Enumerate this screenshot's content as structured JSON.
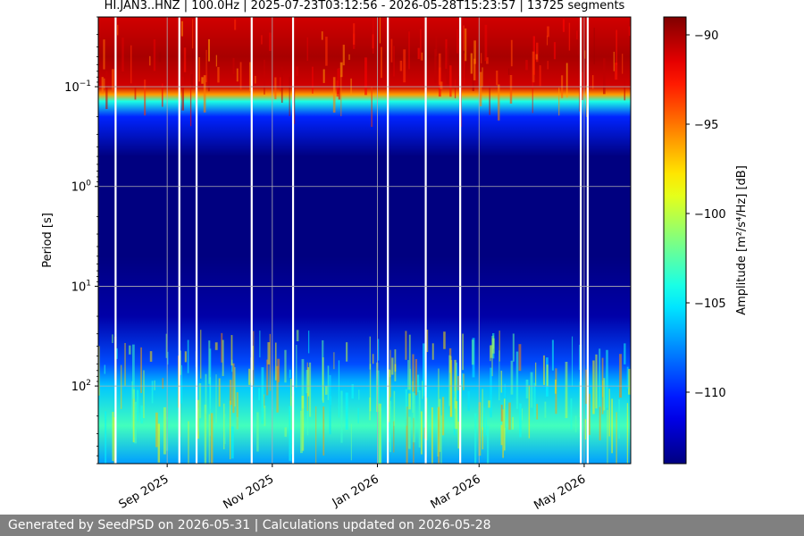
{
  "title": "HI.JAN3..HNZ | 100.0Hz | 2025-07-23T03:12:56 - 2026-05-28T15:23:57 | 13725 segments",
  "footer": "Generated by SeedPSD on 2026-05-31 | Calculations updated on 2026-05-28",
  "chart_data": {
    "type": "heatmap",
    "title": "HI.JAN3..HNZ | 100.0Hz | 2025-07-23T03:12:56 - 2026-05-28T15:23:57 | 13725 segments",
    "xlabel": "",
    "ylabel": "Period [s]",
    "colorbar_label": "Amplitude [m²/s⁴/Hz] [dB]",
    "colormap": "jet",
    "grid": true,
    "x_range": [
      "2025-07-23",
      "2026-05-28"
    ],
    "x_ticks": [
      {
        "date": "2025-09-01",
        "label": "Sep 2025"
      },
      {
        "date": "2025-11-01",
        "label": "Nov 2025"
      },
      {
        "date": "2026-01-01",
        "label": "Jan 2026"
      },
      {
        "date": "2026-03-01",
        "label": "Mar 2026"
      },
      {
        "date": "2026-05-01",
        "label": "May 2026"
      }
    ],
    "y_scale": "log",
    "y_inverted": true,
    "y_range": [
      0.02,
      600
    ],
    "y_ticks": [
      {
        "value": 0.1,
        "label": "10",
        "exp": "−1"
      },
      {
        "value": 1,
        "label": "10",
        "exp": "0"
      },
      {
        "value": 10,
        "label": "10",
        "exp": "1"
      },
      {
        "value": 100,
        "label": "10",
        "exp": "2"
      }
    ],
    "colorbar_range": [
      -114,
      -89
    ],
    "colorbar_ticks": [
      {
        "value": -90,
        "label": "−90"
      },
      {
        "value": -95,
        "label": "−95"
      },
      {
        "value": -100,
        "label": "−100"
      },
      {
        "value": -105,
        "label": "−105"
      },
      {
        "value": -110,
        "label": "−110"
      }
    ],
    "spectrum_profile": [
      {
        "period": 0.02,
        "db": -91
      },
      {
        "period": 0.05,
        "db": -90
      },
      {
        "period": 0.1,
        "db": -91
      },
      {
        "period": 0.12,
        "db": -96
      },
      {
        "period": 0.14,
        "db": -104
      },
      {
        "period": 0.2,
        "db": -110
      },
      {
        "period": 0.5,
        "db": -114
      },
      {
        "period": 5,
        "db": -114
      },
      {
        "period": 20,
        "db": -113
      },
      {
        "period": 60,
        "db": -109
      },
      {
        "period": 100,
        "db": -106
      },
      {
        "period": 250,
        "db": -103
      },
      {
        "period": 600,
        "db": -107
      }
    ],
    "data_gaps": [
      "2025-08-02",
      "2025-09-08",
      "2025-09-18",
      "2025-10-20",
      "2025-11-13",
      "2026-01-07",
      "2026-01-29",
      "2026-02-18",
      "2026-04-29",
      "2026-05-03"
    ]
  }
}
